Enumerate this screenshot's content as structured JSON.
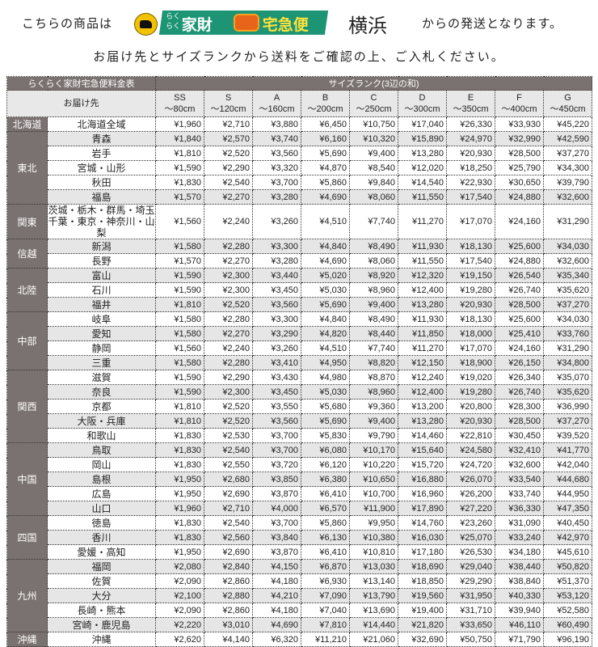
{
  "header": {
    "prefix": "こちらの商品は",
    "logo_text": "家財",
    "logo_text2": "宅急便",
    "logo_small": "らくらく",
    "city": "横浜",
    "suffix": "からの発送となります。",
    "instruction": "お届け先とサイズランクから送料をご確認の上、ご入札ください。"
  },
  "table": {
    "title": "らくらく家財宅急便料金表",
    "size_header": "サイズランク(3辺の和)",
    "dest_header": "お届け先",
    "sizes": [
      {
        "rank": "SS",
        "range": "～80cm"
      },
      {
        "rank": "S",
        "range": "～120cm"
      },
      {
        "rank": "A",
        "range": "～160cm"
      },
      {
        "rank": "B",
        "range": "～200cm"
      },
      {
        "rank": "C",
        "range": "～250cm"
      },
      {
        "rank": "D",
        "range": "～300cm"
      },
      {
        "rank": "E",
        "range": "～350cm"
      },
      {
        "rank": "F",
        "range": "～400cm"
      },
      {
        "rank": "G",
        "range": "～450cm"
      }
    ],
    "regions": [
      {
        "name": "北海道",
        "rows": [
          {
            "dest": "北海道全域",
            "prices": [
              "¥1,960",
              "¥2,710",
              "¥3,880",
              "¥6,450",
              "¥10,750",
              "¥17,040",
              "¥26,330",
              "¥33,930",
              "¥45,220"
            ]
          }
        ]
      },
      {
        "name": "東北",
        "rows": [
          {
            "dest": "青森",
            "shade": true,
            "prices": [
              "¥1,840",
              "¥2,570",
              "¥3,740",
              "¥6,160",
              "¥10,320",
              "¥15,890",
              "¥24,970",
              "¥32,990",
              "¥42,590"
            ]
          },
          {
            "dest": "岩手",
            "prices": [
              "¥1,810",
              "¥2,520",
              "¥3,560",
              "¥5,690",
              "¥9,400",
              "¥13,280",
              "¥20,930",
              "¥28,500",
              "¥37,270"
            ]
          },
          {
            "dest": "宮城・山形",
            "prices": [
              "¥1,590",
              "¥2,290",
              "¥3,320",
              "¥4,870",
              "¥8,540",
              "¥12,020",
              "¥18,250",
              "¥25,790",
              "¥34,300"
            ]
          },
          {
            "dest": "秋田",
            "prices": [
              "¥1,830",
              "¥2,540",
              "¥3,700",
              "¥5,860",
              "¥9,840",
              "¥14,540",
              "¥22,930",
              "¥30,650",
              "¥39,790"
            ]
          },
          {
            "dest": "福島",
            "shade": true,
            "prices": [
              "¥1,570",
              "¥2,270",
              "¥3,280",
              "¥4,690",
              "¥8,060",
              "¥11,550",
              "¥17,540",
              "¥24,880",
              "¥32,600"
            ]
          }
        ]
      },
      {
        "name": "関東",
        "rows": [
          {
            "dest": "茨城・栃木・群馬・埼玉",
            "dest2": "千葉・東京・神奈川・山梨",
            "prices": [
              "¥1,560",
              "¥2,240",
              "¥3,260",
              "¥4,510",
              "¥7,740",
              "¥11,270",
              "¥17,070",
              "¥24,160",
              "¥31,290"
            ]
          }
        ]
      },
      {
        "name": "信越",
        "rows": [
          {
            "dest": "新潟",
            "shade": true,
            "prices": [
              "¥1,580",
              "¥2,280",
              "¥3,300",
              "¥4,840",
              "¥8,490",
              "¥11,930",
              "¥18,130",
              "¥25,600",
              "¥34,030"
            ]
          },
          {
            "dest": "長野",
            "prices": [
              "¥1,570",
              "¥2,270",
              "¥3,280",
              "¥4,690",
              "¥8,060",
              "¥11,550",
              "¥17,540",
              "¥24,880",
              "¥32,600"
            ]
          }
        ]
      },
      {
        "name": "北陸",
        "rows": [
          {
            "dest": "富山",
            "shade": true,
            "prices": [
              "¥1,590",
              "¥2,300",
              "¥3,440",
              "¥5,020",
              "¥8,920",
              "¥12,320",
              "¥19,150",
              "¥26,540",
              "¥35,340"
            ]
          },
          {
            "dest": "石川",
            "prices": [
              "¥1,590",
              "¥2,300",
              "¥3,450",
              "¥5,030",
              "¥8,960",
              "¥12,400",
              "¥19,280",
              "¥26,740",
              "¥35,620"
            ]
          },
          {
            "dest": "福井",
            "shade": true,
            "prices": [
              "¥1,810",
              "¥2,520",
              "¥3,560",
              "¥5,690",
              "¥9,400",
              "¥13,280",
              "¥20,930",
              "¥28,500",
              "¥37,270"
            ]
          }
        ]
      },
      {
        "name": "中部",
        "rows": [
          {
            "dest": "岐阜",
            "prices": [
              "¥1,580",
              "¥2,280",
              "¥3,300",
              "¥4,840",
              "¥8,490",
              "¥11,930",
              "¥18,130",
              "¥25,600",
              "¥34,030"
            ]
          },
          {
            "dest": "愛知",
            "shade": true,
            "prices": [
              "¥1,580",
              "¥2,270",
              "¥3,290",
              "¥4,820",
              "¥8,440",
              "¥11,850",
              "¥18,000",
              "¥25,410",
              "¥33,760"
            ]
          },
          {
            "dest": "静岡",
            "prices": [
              "¥1,560",
              "¥2,240",
              "¥3,260",
              "¥4,510",
              "¥7,740",
              "¥11,270",
              "¥17,070",
              "¥24,160",
              "¥31,290"
            ]
          },
          {
            "dest": "三重",
            "shade": true,
            "prices": [
              "¥1,580",
              "¥2,280",
              "¥3,410",
              "¥4,950",
              "¥8,820",
              "¥12,150",
              "¥18,900",
              "¥26,150",
              "¥34,800"
            ]
          }
        ]
      },
      {
        "name": "関西",
        "rows": [
          {
            "dest": "滋賀",
            "prices": [
              "¥1,590",
              "¥2,290",
              "¥3,430",
              "¥4,980",
              "¥8,870",
              "¥12,240",
              "¥19,020",
              "¥26,340",
              "¥35,070"
            ]
          },
          {
            "dest": "奈良",
            "shade": true,
            "prices": [
              "¥1,590",
              "¥2,300",
              "¥3,450",
              "¥5,030",
              "¥8,960",
              "¥12,400",
              "¥19,280",
              "¥26,740",
              "¥35,620"
            ]
          },
          {
            "dest": "京都",
            "prices": [
              "¥1,810",
              "¥2,520",
              "¥3,550",
              "¥5,680",
              "¥9,360",
              "¥13,200",
              "¥20,800",
              "¥28,300",
              "¥36,990"
            ]
          },
          {
            "dest": "大阪・兵庫",
            "shade": true,
            "prices": [
              "¥1,810",
              "¥2,520",
              "¥3,560",
              "¥5,690",
              "¥9,400",
              "¥13,280",
              "¥20,930",
              "¥28,500",
              "¥37,270"
            ]
          },
          {
            "dest": "和歌山",
            "prices": [
              "¥1,830",
              "¥2,530",
              "¥3,700",
              "¥5,830",
              "¥9,790",
              "¥14,460",
              "¥22,810",
              "¥30,450",
              "¥39,520"
            ]
          }
        ]
      },
      {
        "name": "中国",
        "rows": [
          {
            "dest": "鳥取",
            "shade": true,
            "prices": [
              "¥1,830",
              "¥2,540",
              "¥3,700",
              "¥6,080",
              "¥10,170",
              "¥15,640",
              "¥24,580",
              "¥32,410",
              "¥41,770"
            ]
          },
          {
            "dest": "岡山",
            "prices": [
              "¥1,830",
              "¥2,550",
              "¥3,720",
              "¥6,120",
              "¥10,220",
              "¥15,720",
              "¥24,720",
              "¥32,600",
              "¥42,040"
            ]
          },
          {
            "dest": "島根",
            "shade": true,
            "prices": [
              "¥1,950",
              "¥2,680",
              "¥3,850",
              "¥6,380",
              "¥10,650",
              "¥16,880",
              "¥26,070",
              "¥33,540",
              "¥44,680"
            ]
          },
          {
            "dest": "広島",
            "prices": [
              "¥1,950",
              "¥2,690",
              "¥3,870",
              "¥6,410",
              "¥10,700",
              "¥16,960",
              "¥26,200",
              "¥33,740",
              "¥44,950"
            ]
          },
          {
            "dest": "山口",
            "shade": true,
            "prices": [
              "¥1,960",
              "¥2,710",
              "¥4,000",
              "¥6,570",
              "¥11,900",
              "¥17,890",
              "¥27,220",
              "¥36,330",
              "¥47,350"
            ]
          }
        ]
      },
      {
        "name": "四国",
        "rows": [
          {
            "dest": "徳島",
            "prices": [
              "¥1,830",
              "¥2,540",
              "¥3,700",
              "¥5,860",
              "¥9,950",
              "¥14,760",
              "¥23,260",
              "¥31,090",
              "¥40,450"
            ]
          },
          {
            "dest": "香川",
            "shade": true,
            "prices": [
              "¥1,830",
              "¥2,560",
              "¥3,840",
              "¥6,130",
              "¥10,380",
              "¥16,030",
              "¥25,070",
              "¥33,240",
              "¥42,970"
            ]
          },
          {
            "dest": "愛媛・高知",
            "prices": [
              "¥1,950",
              "¥2,690",
              "¥3,870",
              "¥6,410",
              "¥10,810",
              "¥17,180",
              "¥26,530",
              "¥34,180",
              "¥45,610"
            ]
          }
        ]
      },
      {
        "name": "九州",
        "rows": [
          {
            "dest": "福岡",
            "shade": true,
            "prices": [
              "¥2,080",
              "¥2,840",
              "¥4,150",
              "¥6,870",
              "¥13,030",
              "¥18,690",
              "¥29,040",
              "¥38,440",
              "¥50,820"
            ]
          },
          {
            "dest": "佐賀",
            "prices": [
              "¥2,090",
              "¥2,860",
              "¥4,180",
              "¥6,930",
              "¥13,140",
              "¥18,850",
              "¥29,290",
              "¥38,840",
              "¥51,370"
            ]
          },
          {
            "dest": "大分",
            "shade": true,
            "prices": [
              "¥2,100",
              "¥2,880",
              "¥4,210",
              "¥7,090",
              "¥13,790",
              "¥19,560",
              "¥31,950",
              "¥40,330",
              "¥53,120"
            ]
          },
          {
            "dest": "長崎・熊本",
            "prices": [
              "¥2,090",
              "¥2,860",
              "¥4,180",
              "¥7,040",
              "¥13,690",
              "¥19,400",
              "¥31,710",
              "¥39,940",
              "¥52,580"
            ]
          },
          {
            "dest": "宮崎・鹿児島",
            "shade": true,
            "prices": [
              "¥2,220",
              "¥3,010",
              "¥4,690",
              "¥7,810",
              "¥14,440",
              "¥21,820",
              "¥33,650",
              "¥46,110",
              "¥60,490"
            ]
          }
        ]
      },
      {
        "name": "沖縄",
        "rows": [
          {
            "dest": "沖縄",
            "prices": [
              "¥2,620",
              "¥4,140",
              "¥6,320",
              "¥11,210",
              "¥21,060",
              "¥32,690",
              "¥50,750",
              "¥71,790",
              "¥96,190"
            ]
          }
        ]
      }
    ]
  }
}
